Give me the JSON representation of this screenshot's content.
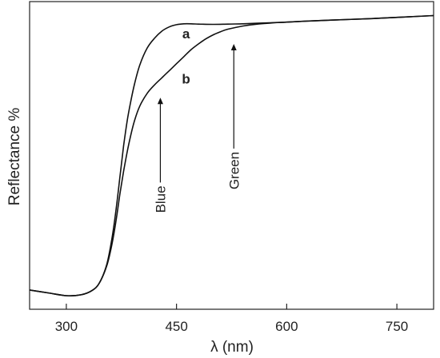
{
  "chart_data": {
    "type": "line",
    "title": "",
    "xlabel": "λ (nm)",
    "ylabel": "Reflectance %",
    "xlim": [
      250,
      800
    ],
    "ylim": [
      0,
      100
    ],
    "x_ticks": [
      "300",
      "450",
      "600",
      "750"
    ],
    "x_tick_values": [
      300,
      450,
      600,
      750
    ],
    "y_ticks_shown": false,
    "grid": false,
    "legend": "none",
    "series": [
      {
        "name": "a",
        "x": [
          250,
          275,
          300,
          320,
          335,
          345,
          355,
          362,
          368,
          373,
          378,
          383,
          388,
          393,
          400,
          410,
          420,
          430,
          440,
          450,
          460,
          470,
          480,
          500,
          520,
          540,
          560,
          580,
          600,
          640,
          680,
          720,
          760,
          800
        ],
        "y": [
          2.0,
          1.0,
          0.0,
          0.3,
          1.8,
          4.5,
          11.0,
          20.0,
          31.0,
          42.0,
          53.0,
          62.0,
          69.0,
          75.0,
          81.5,
          87.5,
          91.0,
          93.5,
          95.0,
          95.8,
          96.1,
          96.1,
          96.0,
          95.9,
          96.0,
          96.1,
          96.3,
          96.5,
          96.7,
          97.2,
          97.6,
          98.0,
          98.5,
          99.0
        ]
      },
      {
        "name": "b",
        "x": [
          250,
          275,
          300,
          320,
          335,
          345,
          355,
          362,
          368,
          373,
          378,
          383,
          388,
          393,
          400,
          410,
          420,
          430,
          440,
          450,
          460,
          470,
          480,
          490,
          500,
          510,
          520,
          540,
          560,
          580,
          600,
          640,
          680,
          720,
          760,
          800
        ],
        "y": [
          2.0,
          1.0,
          0.0,
          0.3,
          1.8,
          4.5,
          10.5,
          18.0,
          27.0,
          36.0,
          44.0,
          51.0,
          57.0,
          62.0,
          67.0,
          71.5,
          74.5,
          77.0,
          79.5,
          82.0,
          84.5,
          87.0,
          89.0,
          90.8,
          92.2,
          93.3,
          94.2,
          95.3,
          96.0,
          96.4,
          96.7,
          97.2,
          97.6,
          98.0,
          98.5,
          99.0
        ]
      }
    ],
    "curve_labels": [
      {
        "text": "a",
        "x": 463,
        "y": 91
      },
      {
        "text": "b",
        "x": 463,
        "y": 75
      }
    ],
    "annotations": [
      {
        "text": "Blue",
        "x": 428,
        "y_from": 40,
        "y_to": 70
      },
      {
        "text": "Green",
        "x": 528,
        "y_from": 52,
        "y_to": 89
      }
    ]
  }
}
